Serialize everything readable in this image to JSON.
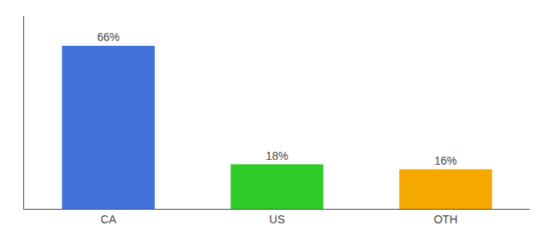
{
  "chart_data": {
    "type": "bar",
    "categories": [
      "CA",
      "US",
      "OTH"
    ],
    "values": [
      66,
      18,
      16
    ],
    "value_labels": [
      "66%",
      "18%",
      "16%"
    ],
    "colors": [
      "#4472db",
      "#2ecc27",
      "#f5a800"
    ],
    "ylim": [
      0,
      78
    ],
    "data_labels": true,
    "tick_labels": "x",
    "grid": false
  }
}
